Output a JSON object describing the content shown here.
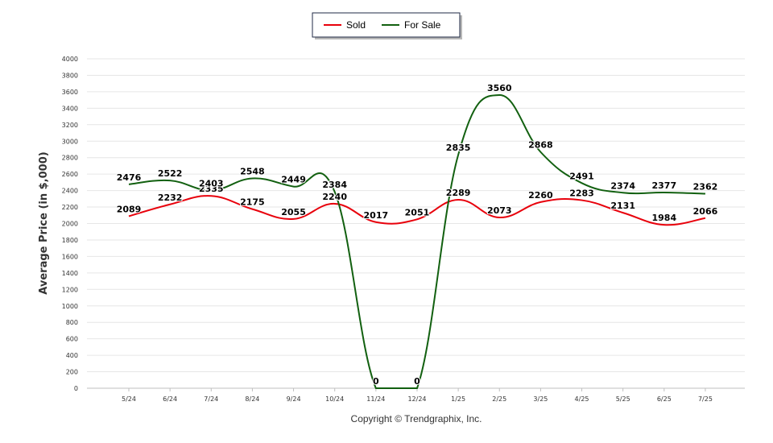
{
  "chart_data": {
    "type": "line",
    "categories": [
      "5/24",
      "6/24",
      "7/24",
      "8/24",
      "9/24",
      "10/24",
      "11/24",
      "12/24",
      "1/25",
      "2/25",
      "3/25",
      "4/25",
      "5/25",
      "6/25",
      "7/25"
    ],
    "series": [
      {
        "name": "Sold",
        "color": "#e8000b",
        "values": [
          2089,
          2232,
          2335,
          2175,
          2055,
          2240,
          2017,
          2051,
          2289,
          2073,
          2260,
          2283,
          2131,
          1984,
          2066
        ]
      },
      {
        "name": "For Sale",
        "color": "#126010",
        "values": [
          2476,
          2522,
          2403,
          2548,
          2449,
          2384,
          0,
          0,
          2835,
          3560,
          2868,
          2491,
          2374,
          2377,
          2362
        ]
      }
    ],
    "xlabel": "",
    "ylabel": "Average Price  (in $,000)",
    "ylim": [
      0,
      4000
    ],
    "yticks": [
      0,
      200,
      400,
      600,
      800,
      1000,
      1200,
      1400,
      1600,
      1800,
      2000,
      2200,
      2400,
      2600,
      2800,
      3000,
      3200,
      3400,
      3600,
      3800,
      4000
    ],
    "grid": true,
    "legend_position": "top-center",
    "data_labels": true
  },
  "footer": {
    "copyright": "Copyright © Trendgraphix, Inc."
  }
}
